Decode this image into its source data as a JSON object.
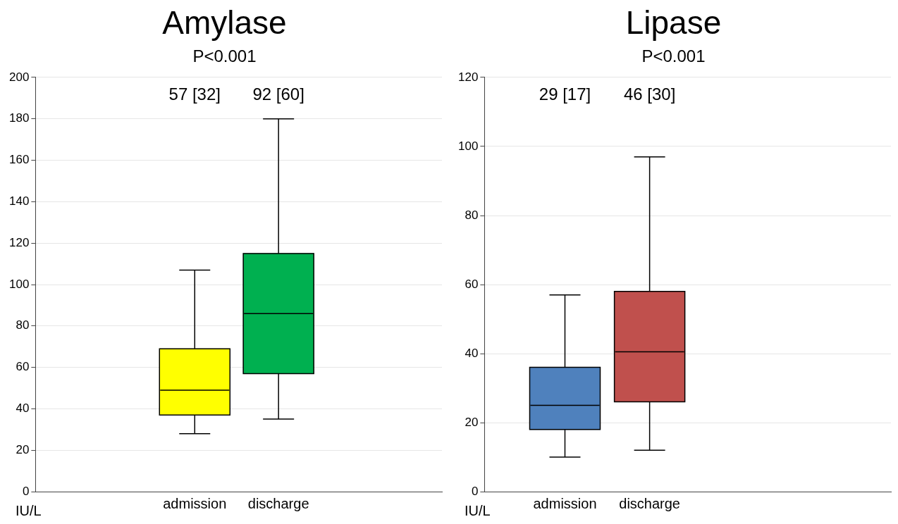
{
  "chart_data": [
    {
      "type": "box",
      "title": "Amylase",
      "subtitle": "P<0.001",
      "ylabel": "IU/L",
      "categories": [
        "admission",
        "discharge"
      ],
      "colors": [
        "#ffff00",
        "#00b050"
      ],
      "boxes": [
        {
          "low": 28,
          "q1": 37,
          "median": 49,
          "q3": 69,
          "high": 107
        },
        {
          "low": 35,
          "q1": 57,
          "median": 86,
          "q3": 115,
          "high": 180
        }
      ],
      "annotations": [
        "57 [32]",
        "92 [60]"
      ],
      "ylim": [
        0,
        200
      ],
      "yticks": [
        0,
        20,
        40,
        60,
        80,
        100,
        120,
        140,
        160,
        180,
        200
      ],
      "grid": "y",
      "legend": false
    },
    {
      "type": "box",
      "title": "Lipase",
      "subtitle": "P<0.001",
      "ylabel": "IU/L",
      "categories": [
        "admission",
        "discharge"
      ],
      "colors": [
        "#4f81bd",
        "#c0504d"
      ],
      "boxes": [
        {
          "low": 10,
          "q1": 18,
          "median": 25,
          "q3": 36,
          "high": 57
        },
        {
          "low": 12,
          "q1": 26,
          "median": 40.5,
          "q3": 58,
          "high": 97
        }
      ],
      "annotations": [
        "29 [17]",
        "46 [30]"
      ],
      "ylim": [
        0,
        120
      ],
      "yticks": [
        0,
        20,
        40,
        60,
        80,
        100,
        120
      ],
      "grid": "y",
      "legend": false
    }
  ]
}
